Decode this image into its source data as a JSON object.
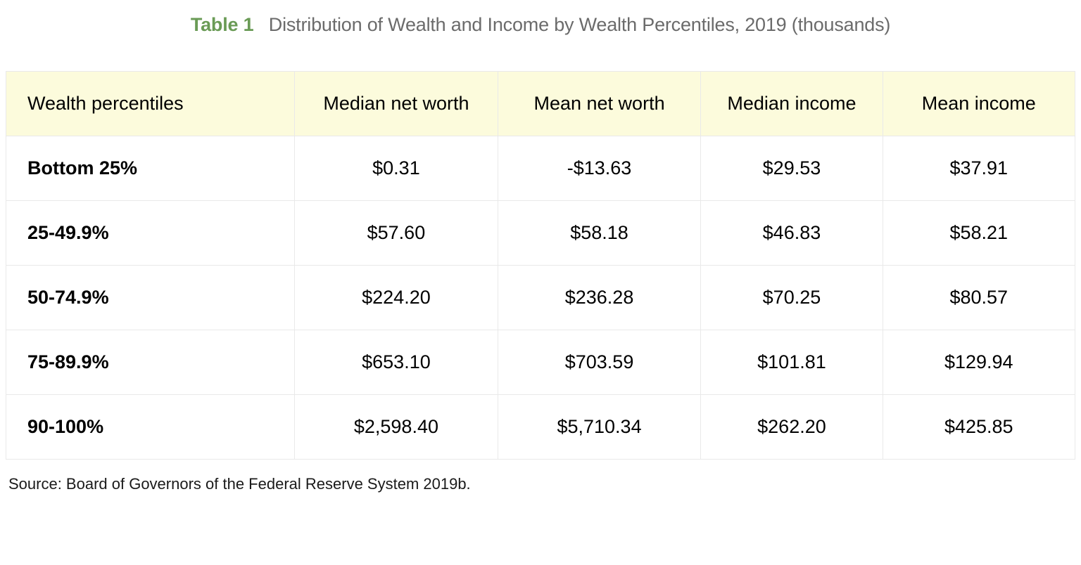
{
  "title": {
    "label": "Table 1",
    "text": "Distribution of Wealth and Income by Wealth Percentiles, 2019 (thousands)"
  },
  "table": {
    "header_bg": "#fcfbdc",
    "border_color": "#e9e9e9",
    "font_size_pt": 20,
    "columns": [
      {
        "label": "Wealth percentiles",
        "align": "left",
        "width_pct": 27
      },
      {
        "label": "Median net worth",
        "align": "center",
        "width_pct": 19
      },
      {
        "label": "Mean net worth",
        "align": "center",
        "width_pct": 19
      },
      {
        "label": "Median income",
        "align": "center",
        "width_pct": 17
      },
      {
        "label": "Mean income",
        "align": "center",
        "width_pct": 18
      }
    ],
    "rows": [
      {
        "label": "Bottom 25%",
        "cells": [
          "$0.31",
          "-$13.63",
          "$29.53",
          "$37.91"
        ]
      },
      {
        "label": "25-49.9%",
        "cells": [
          "$57.60",
          "$58.18",
          "$46.83",
          "$58.21"
        ]
      },
      {
        "label": "50-74.9%",
        "cells": [
          "$224.20",
          "$236.28",
          "$70.25",
          "$80.57"
        ]
      },
      {
        "label": "75-89.9%",
        "cells": [
          "$653.10",
          "$703.59",
          "$101.81",
          "$129.94"
        ]
      },
      {
        "label": "90-100%",
        "cells": [
          "$2,598.40",
          "$5,710.34",
          "$262.20",
          "$425.85"
        ]
      }
    ]
  },
  "source": "Source: Board of Governors of the Federal Reserve System 2019b.",
  "colors": {
    "title_label": "#6a9b56",
    "title_text": "#6b6b6b",
    "body_text": "#000000",
    "background": "#ffffff"
  }
}
